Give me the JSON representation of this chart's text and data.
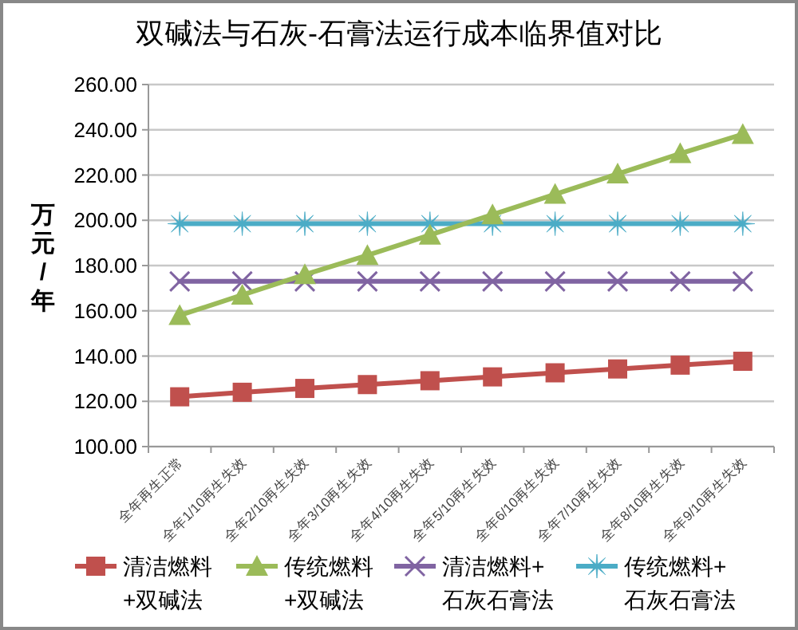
{
  "chart_data": {
    "type": "line",
    "title": "双碱法与石灰-石膏法运行成本临界值对比",
    "ylabel": "万元/年",
    "categories": [
      "全年再生正常",
      "全年1/10再生失效",
      "全年2/10再生失效",
      "全年3/10再生失效",
      "全年4/10再生失效",
      "全年5/10再生失效",
      "全年6/10再生失效",
      "全年7/10再生失效",
      "全年8/10再生失效",
      "全年9/10再生失效"
    ],
    "series": [
      {
        "name": "清洁燃料\n+双碱法",
        "color": "#c0504d",
        "marker": "square",
        "values": [
          122,
          124,
          125.7,
          127.4,
          129.1,
          130.8,
          132.6,
          134.3,
          136,
          137.7
        ]
      },
      {
        "name": "传统燃料\n+双碱法",
        "color": "#9bbb59",
        "marker": "triangle",
        "values": [
          158,
          167,
          176,
          184.5,
          193.5,
          202.5,
          211.5,
          220.5,
          229.5,
          238
        ]
      },
      {
        "name": "清洁燃料+\n石灰石膏法",
        "color": "#8064a2",
        "marker": "cross",
        "values": [
          173,
          173,
          173,
          173,
          173,
          173,
          173,
          173,
          173,
          173
        ]
      },
      {
        "name": "传统燃料+\n石灰石膏法",
        "color": "#4bacc6",
        "marker": "star",
        "values": [
          198.5,
          198.5,
          198.5,
          198.5,
          198.5,
          198.5,
          198.5,
          198.5,
          198.5,
          198.5
        ]
      }
    ],
    "ylim": [
      100,
      260
    ],
    "yticks": [
      {
        "value": 100,
        "label": "100.00"
      },
      {
        "value": 120,
        "label": "120.00"
      },
      {
        "value": 140,
        "label": "140.00"
      },
      {
        "value": 160,
        "label": "160.00"
      },
      {
        "value": 180,
        "label": "180.00"
      },
      {
        "value": 200,
        "label": "200.00"
      },
      {
        "value": 220,
        "label": "220.00"
      },
      {
        "value": 240,
        "label": "240.00"
      },
      {
        "value": 260,
        "label": "260.00"
      }
    ],
    "grid": "y",
    "legend": "bottom"
  }
}
